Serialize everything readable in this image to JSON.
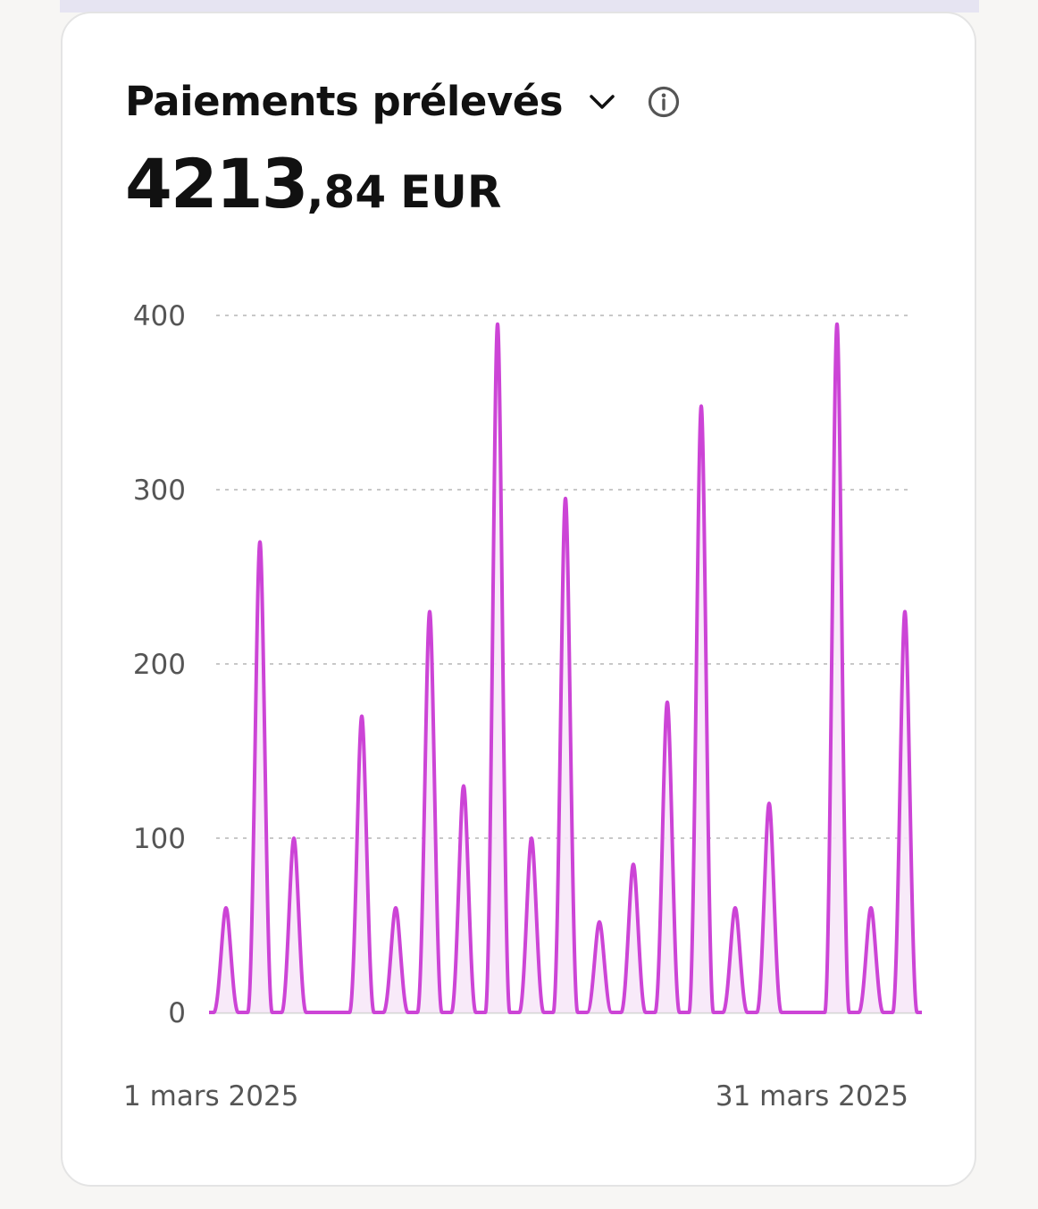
{
  "header": {
    "title": "Paiements prélevés",
    "amount_int": "4213",
    "amount_dec": ",84",
    "currency": "EUR"
  },
  "icons": {
    "dropdown": "chevron-down-icon",
    "info": "info-icon"
  },
  "colors": {
    "series": "#cc44d6",
    "fill": "#f7e8f8",
    "grid": "#c8c8c8",
    "baseline": "#d6d6d6"
  },
  "chart_data": {
    "type": "area",
    "x_start_label": "1 mars 2025",
    "x_end_label": "31 mars 2025",
    "yticks": [
      0,
      100,
      200,
      300,
      400
    ],
    "ylim": [
      0,
      400
    ],
    "grid": true,
    "series": [
      {
        "values": [
          60,
          270,
          100,
          0,
          170,
          60,
          230,
          130,
          395,
          100,
          295,
          52,
          85,
          178,
          348,
          60,
          120,
          0,
          395,
          60,
          230
        ]
      }
    ]
  }
}
